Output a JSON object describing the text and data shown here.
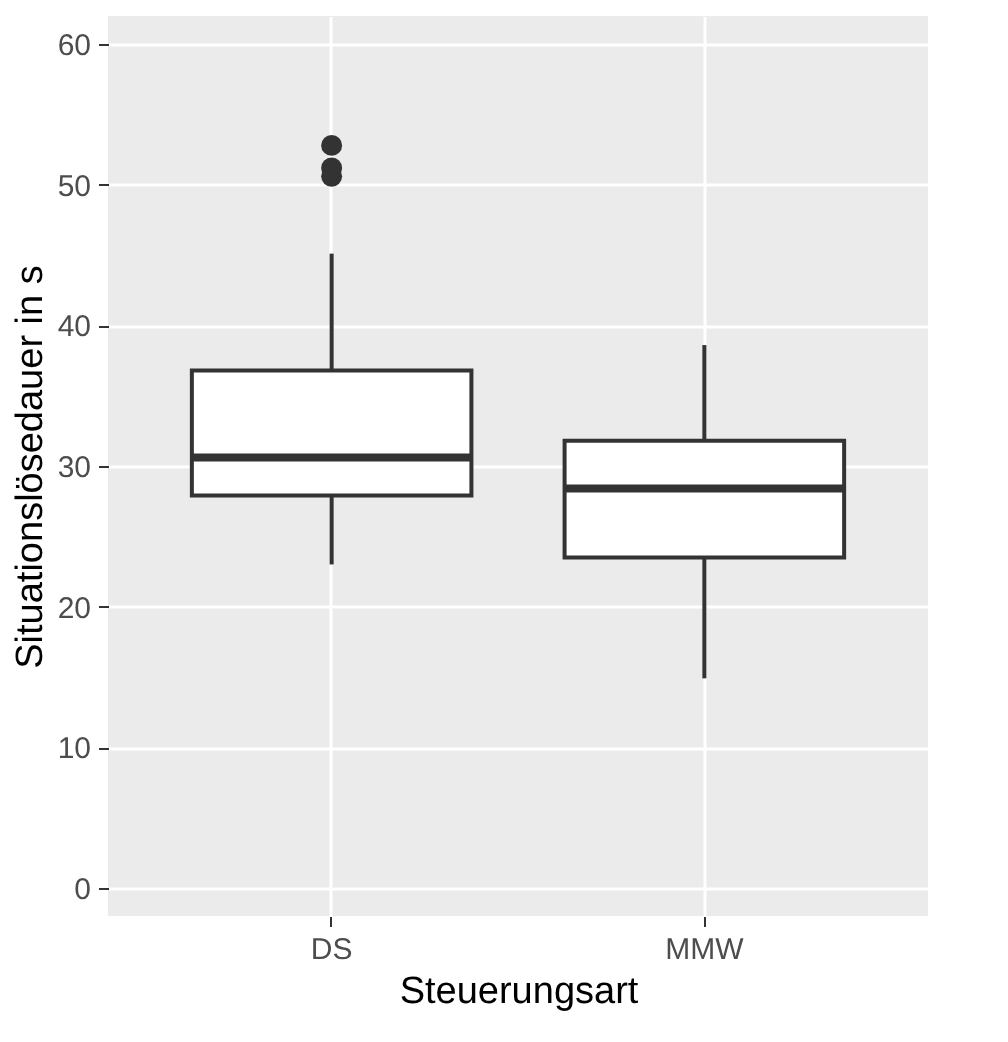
{
  "chart_data": {
    "type": "box",
    "xlabel": "Steuerungsart",
    "ylabel": "Situationslösedauer in s",
    "categories": [
      "DS",
      "MMW"
    ],
    "boxes": [
      {
        "low": 23.0,
        "q1": 27.9,
        "median": 30.6,
        "q3": 36.8,
        "high": 45.1,
        "outliers": [
          52.8,
          51.2,
          50.6
        ]
      },
      {
        "low": 14.9,
        "q1": 23.5,
        "median": 28.4,
        "q3": 31.8,
        "high": 38.6
      }
    ],
    "ylim": [
      -2,
      62
    ],
    "yticks": [
      0,
      10,
      20,
      30,
      40,
      50,
      60
    ],
    "grid": true
  }
}
